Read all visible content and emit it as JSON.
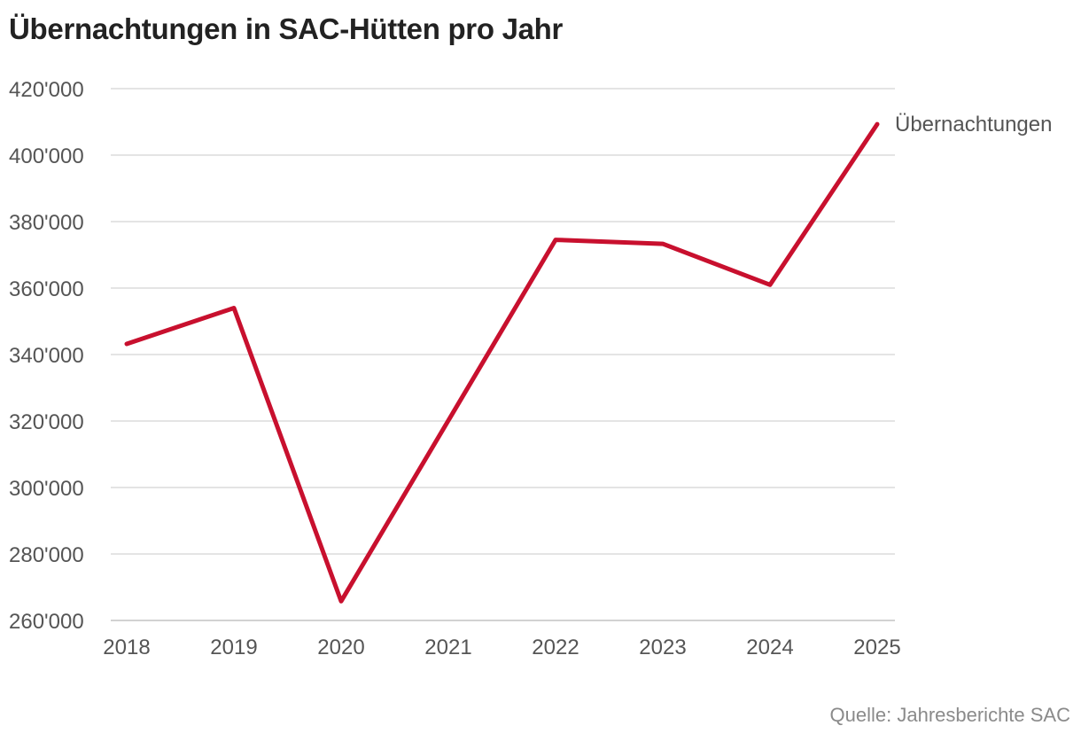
{
  "chart_data": {
    "type": "line",
    "title": "Übernachtungen in SAC-Hütten pro Jahr",
    "xlabel": "",
    "ylabel": "",
    "categories": [
      "2018",
      "2019",
      "2020",
      "2021",
      "2022",
      "2023",
      "2024",
      "2025"
    ],
    "series": [
      {
        "name": "Übernachtungen",
        "color": "#c8102e",
        "values": [
          343200,
          354000,
          265800,
          null,
          374500,
          373300,
          361000,
          409300
        ]
      }
    ],
    "ylim": [
      260000,
      420000
    ],
    "yticks": [
      {
        "value": 260000,
        "label": "260'000"
      },
      {
        "value": 280000,
        "label": "280'000"
      },
      {
        "value": 300000,
        "label": "300'000"
      },
      {
        "value": 320000,
        "label": "320'000"
      },
      {
        "value": 340000,
        "label": "340'000"
      },
      {
        "value": 360000,
        "label": "360'000"
      },
      {
        "value": 380000,
        "label": "380'000"
      },
      {
        "value": 400000,
        "label": "400'000"
      },
      {
        "value": 420000,
        "label": "420'000"
      }
    ],
    "grid": true,
    "legend": "end-of-line label",
    "source": "Quelle: Jahresberichte SAC"
  }
}
